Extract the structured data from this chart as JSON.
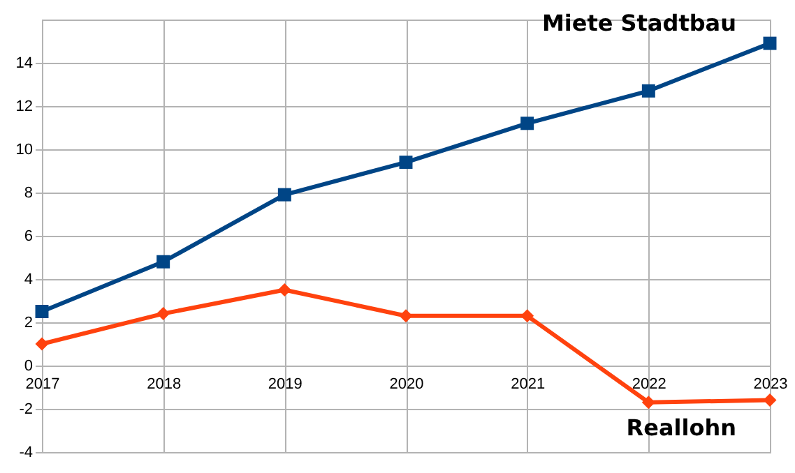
{
  "chart_data": {
    "type": "line",
    "x": [
      2017,
      2018,
      2019,
      2020,
      2021,
      2022,
      2023
    ],
    "series": [
      {
        "name": "Miete Stadtbau",
        "color": "#004586",
        "marker": "square",
        "values": [
          2.5,
          4.8,
          7.9,
          9.4,
          11.2,
          12.7,
          14.9
        ]
      },
      {
        "name": "Reallohn",
        "color": "#ff420e",
        "marker": "diamond",
        "values": [
          1.0,
          2.4,
          3.5,
          2.3,
          2.3,
          -1.7,
          -1.6
        ]
      }
    ],
    "xlim": [
      2017,
      2023
    ],
    "xticks": [
      2017,
      2018,
      2019,
      2020,
      2021,
      2022,
      2023
    ],
    "ylim": [
      -4,
      16
    ],
    "yticks": [
      -4,
      -2,
      0,
      2,
      4,
      6,
      8,
      10,
      12,
      14
    ],
    "grid": true,
    "line_style": "solid"
  }
}
